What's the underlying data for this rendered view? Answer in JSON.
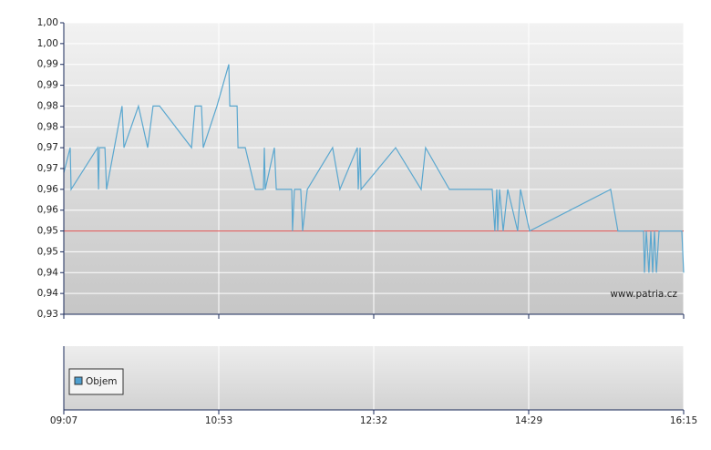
{
  "chart_data": {
    "type": "line",
    "x": [
      0,
      0.041,
      0.047,
      0.218,
      0.224,
      0.229,
      0.265,
      0.276,
      0.376,
      0.388,
      0.482,
      0.541,
      0.576,
      0.618,
      0.824,
      0.847,
      0.888,
      0.9,
      0.988,
      1.065,
      1.071,
      1.118,
      1.124,
      1.171,
      1.235,
      1.288,
      1.294,
      1.3,
      1.359,
      1.371,
      1.471,
      1.476,
      1.488,
      1.529,
      1.541,
      1.571,
      1.735,
      1.782,
      1.894,
      1.9,
      1.912,
      1.918,
      2.141,
      2.306,
      2.335,
      2.488,
      2.765,
      2.782,
      2.794,
      2.8,
      2.812,
      2.835,
      2.865,
      2.929,
      2.947,
      3.006,
      3.529,
      3.576,
      3.741,
      3.747,
      3.759,
      3.776,
      3.788,
      3.8,
      3.812,
      3.824,
      3.841,
      3.988,
      4
    ],
    "series": [
      {
        "color": "#5aa7cf",
        "values": [
          0.964,
          0.97,
          0.96,
          0.97,
          0.96,
          0.97,
          0.97,
          0.96,
          0.98,
          0.97,
          0.98,
          0.97,
          0.98,
          0.98,
          0.97,
          0.98,
          0.98,
          0.97,
          0.98,
          0.99,
          0.98,
          0.98,
          0.97,
          0.97,
          0.96,
          0.96,
          0.97,
          0.96,
          0.97,
          0.96,
          0.96,
          0.95,
          0.96,
          0.96,
          0.95,
          0.96,
          0.97,
          0.96,
          0.97,
          0.96,
          0.97,
          0.96,
          0.97,
          0.96,
          0.97,
          0.96,
          0.96,
          0.95,
          0.96,
          0.95,
          0.96,
          0.95,
          0.96,
          0.95,
          0.96,
          0.95,
          0.96,
          0.95,
          0.95,
          0.94,
          0.95,
          0.94,
          0.95,
          0.94,
          0.95,
          0.94,
          0.95,
          0.95,
          0.94
        ]
      }
    ],
    "reference_line": {
      "value": 0.95,
      "color": "#e06060"
    },
    "xlim": [
      0,
      4
    ],
    "xticks": [
      {
        "value": 0,
        "label": "09:07"
      },
      {
        "value": 1,
        "label": "10:53"
      },
      {
        "value": 2,
        "label": "12:32"
      },
      {
        "value": 3,
        "label": "14:29"
      },
      {
        "value": 4,
        "label": "16:15"
      }
    ],
    "ylim": [
      0.93,
      1.0
    ],
    "yticks": [
      {
        "value": 1.0,
        "label": "1,00"
      },
      {
        "value": 0.995,
        "label": "1,00"
      },
      {
        "value": 0.99,
        "label": "0,99"
      },
      {
        "value": 0.985,
        "label": "0,99"
      },
      {
        "value": 0.98,
        "label": "0,98"
      },
      {
        "value": 0.975,
        "label": "0,98"
      },
      {
        "value": 0.97,
        "label": "0,97"
      },
      {
        "value": 0.965,
        "label": "0,97"
      },
      {
        "value": 0.96,
        "label": "0,96"
      },
      {
        "value": 0.955,
        "label": "0,96"
      },
      {
        "value": 0.95,
        "label": "0,95"
      },
      {
        "value": 0.945,
        "label": "0,95"
      },
      {
        "value": 0.94,
        "label": "0,94"
      },
      {
        "value": 0.935,
        "label": "0,94"
      },
      {
        "value": 0.93,
        "label": "0,93"
      }
    ],
    "grid": true,
    "watermark": "www.patria.cz",
    "volume_panel": {
      "legend": "Objem",
      "color": "#4f9fcf"
    }
  }
}
